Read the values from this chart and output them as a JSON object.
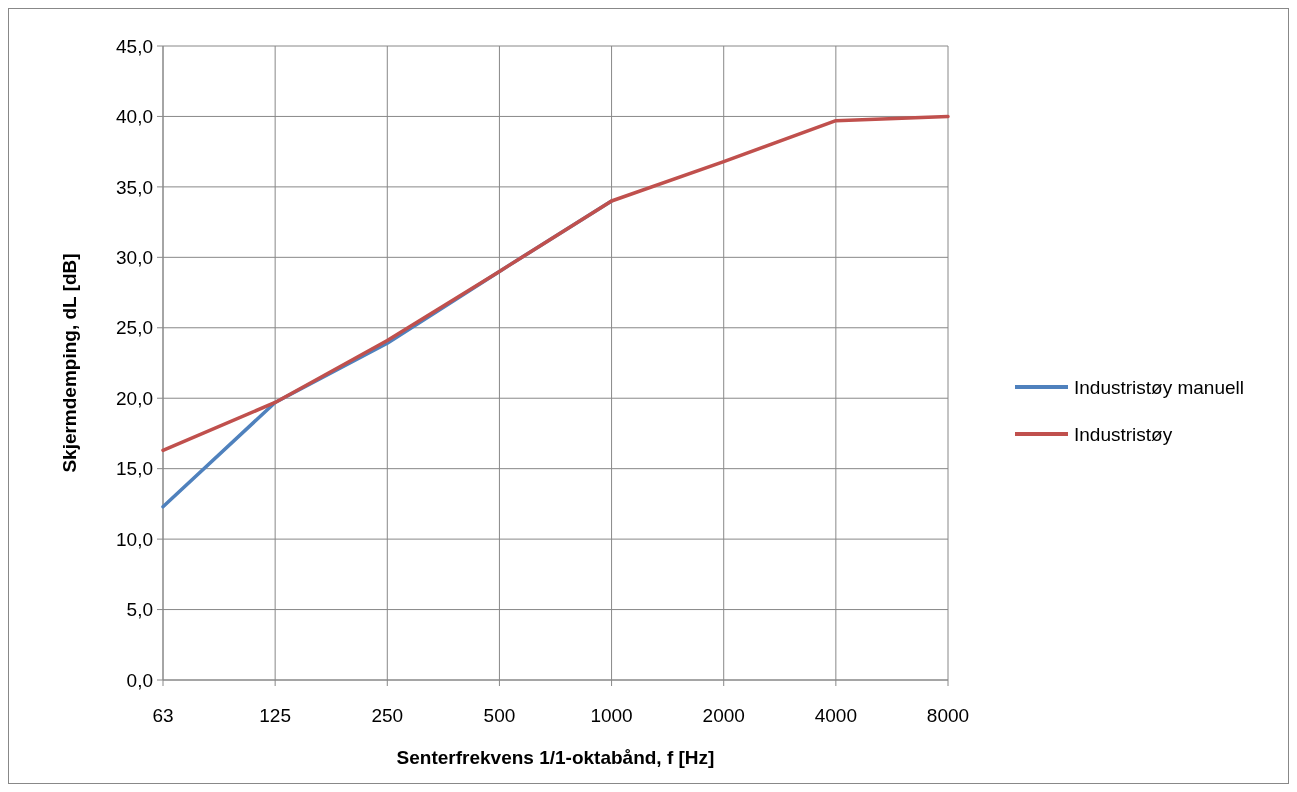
{
  "chart_data": {
    "type": "line",
    "xlabel": "Senterfrekvens 1/1-oktabånd, f [Hz]",
    "ylabel": "Skjermdemping, dL  [dB]",
    "categories": [
      "63",
      "125",
      "250",
      "500",
      "1000",
      "2000",
      "4000",
      "8000"
    ],
    "series": [
      {
        "name": "Industristøy manuell",
        "color": "#4f81bd",
        "values": [
          12.3,
          19.7,
          23.9,
          29.0,
          34.0,
          null,
          null,
          null
        ]
      },
      {
        "name": "Industristøy",
        "color": "#c0504d",
        "values": [
          16.3,
          19.7,
          24.1,
          29.0,
          34.0,
          36.8,
          39.7,
          40.0
        ]
      }
    ],
    "ylim": [
      0,
      45
    ],
    "yticks": [
      {
        "value": 0,
        "label": "0,0"
      },
      {
        "value": 5,
        "label": "5,0"
      },
      {
        "value": 10,
        "label": "10,0"
      },
      {
        "value": 15,
        "label": "15,0"
      },
      {
        "value": 20,
        "label": "20,0"
      },
      {
        "value": 25,
        "label": "25,0"
      },
      {
        "value": 30,
        "label": "30,0"
      },
      {
        "value": 35,
        "label": "35,0"
      },
      {
        "value": 40,
        "label": "40,0"
      },
      {
        "value": 45,
        "label": "45,0"
      }
    ],
    "grid": true,
    "legend": "right",
    "marker": "none",
    "line_style": "solid"
  }
}
